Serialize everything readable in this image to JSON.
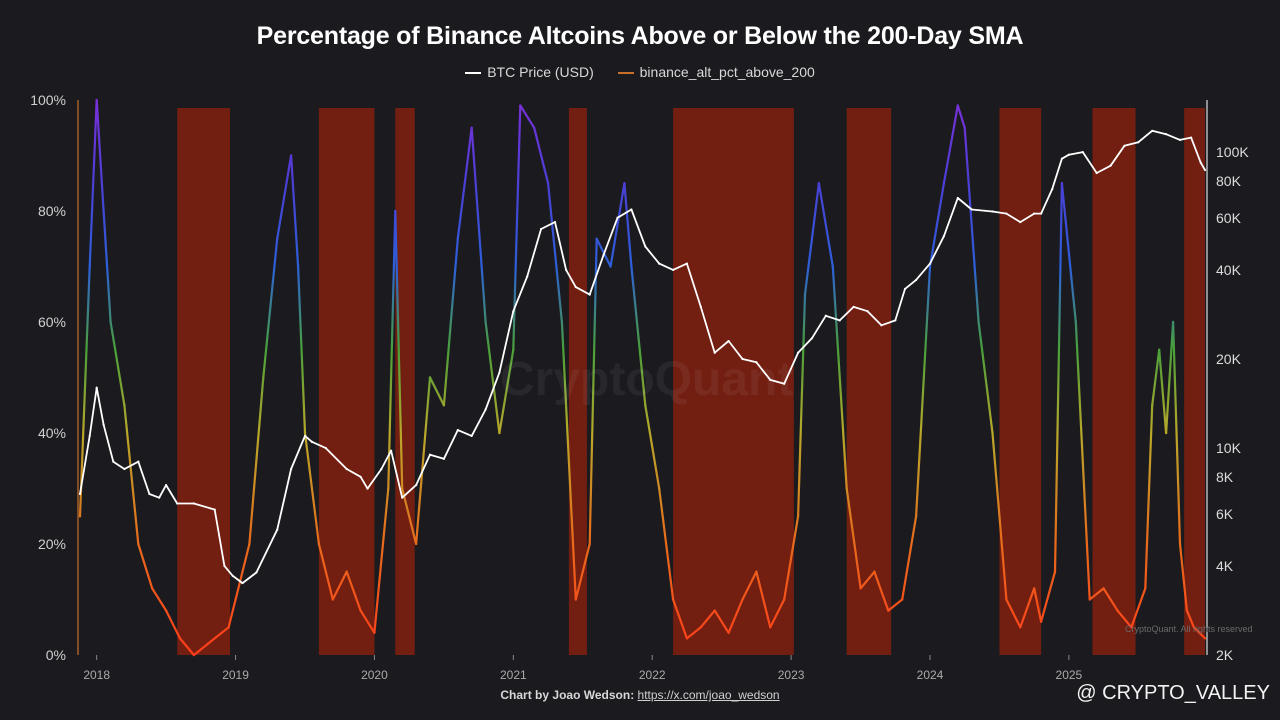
{
  "chart_data": {
    "type": "line",
    "title": "Percentage of Binance Altcoins Above or Below the 200-Day SMA",
    "legend": [
      {
        "name": "BTC Price (USD)",
        "color": "#ffffff"
      },
      {
        "name": "binance_alt_pct_above_200",
        "color": "#c8702a"
      }
    ],
    "x_tick_labels": [
      "2018",
      "2019",
      "2020",
      "2021",
      "2022",
      "2023",
      "2024",
      "2025"
    ],
    "y_left_tick_labels": [
      "100%",
      "80%",
      "60%",
      "40%",
      "20%",
      "0%"
    ],
    "y_left_range": [
      0,
      100
    ],
    "y_right_tick_labels": [
      "100K",
      "80K",
      "60K",
      "40K",
      "20K",
      "10K",
      "8K",
      "6K",
      "4K",
      "2K"
    ],
    "y_right_tick_values": [
      100000,
      80000,
      60000,
      40000,
      20000,
      10000,
      8000,
      6000,
      4000,
      2000
    ],
    "y_right_range": [
      2000,
      150000
    ],
    "y_right_scale": "log",
    "x_range": [
      2017.88,
      2025.98
    ],
    "shaded_bear_periods": [
      [
        2018.58,
        2018.96
      ],
      [
        2019.6,
        2020.0
      ],
      [
        2020.15,
        2020.29
      ],
      [
        2021.4,
        2021.53
      ],
      [
        2022.15,
        2023.02
      ],
      [
        2023.4,
        2023.72
      ],
      [
        2024.5,
        2024.8
      ],
      [
        2025.17,
        2025.48
      ],
      [
        2025.83,
        2025.98
      ]
    ],
    "series": [
      {
        "name": "BTC Price (USD)",
        "x": [
          2017.88,
          2017.95,
          2018.0,
          2018.05,
          2018.12,
          2018.2,
          2018.3,
          2018.38,
          2018.45,
          2018.5,
          2018.58,
          2018.7,
          2018.85,
          2018.92,
          2018.98,
          2019.05,
          2019.15,
          2019.3,
          2019.4,
          2019.5,
          2019.55,
          2019.65,
          2019.8,
          2019.9,
          2019.95,
          2020.05,
          2020.12,
          2020.2,
          2020.3,
          2020.4,
          2020.5,
          2020.6,
          2020.7,
          2020.8,
          2020.9,
          2021.0,
          2021.1,
          2021.2,
          2021.3,
          2021.38,
          2021.45,
          2021.55,
          2021.65,
          2021.75,
          2021.85,
          2021.95,
          2022.05,
          2022.15,
          2022.25,
          2022.35,
          2022.45,
          2022.55,
          2022.65,
          2022.75,
          2022.85,
          2022.95,
          2023.05,
          2023.15,
          2023.25,
          2023.35,
          2023.45,
          2023.55,
          2023.65,
          2023.75,
          2023.82,
          2023.9,
          2024.0,
          2024.1,
          2024.2,
          2024.3,
          2024.45,
          2024.55,
          2024.65,
          2024.75,
          2024.8,
          2024.88,
          2024.95,
          2025.0,
          2025.1,
          2025.2,
          2025.3,
          2025.4,
          2025.5,
          2025.6,
          2025.7,
          2025.8,
          2025.88,
          2025.95,
          2025.98
        ],
        "values": [
          7000,
          11000,
          16000,
          12000,
          9000,
          8500,
          9000,
          7000,
          6800,
          7500,
          6500,
          6500,
          6200,
          4000,
          3700,
          3500,
          3800,
          5300,
          8500,
          11000,
          10500,
          10000,
          8500,
          8000,
          7300,
          8500,
          9800,
          6800,
          7500,
          9500,
          9200,
          11500,
          11000,
          13500,
          18000,
          29000,
          38000,
          55000,
          58000,
          40000,
          35000,
          33000,
          45000,
          60000,
          64000,
          48000,
          42000,
          40000,
          42000,
          30000,
          21000,
          23000,
          20000,
          19500,
          17000,
          16500,
          21000,
          23500,
          28000,
          27000,
          30000,
          29000,
          26000,
          27000,
          34500,
          37000,
          42000,
          52000,
          70000,
          64000,
          63000,
          62000,
          58000,
          62000,
          62000,
          75000,
          95000,
          98000,
          100000,
          85000,
          90000,
          105000,
          108000,
          118000,
          115000,
          110000,
          112000,
          92000,
          87000
        ]
      },
      {
        "name": "binance_alt_pct_above_200",
        "x": [
          2017.88,
          2017.95,
          2018.0,
          2018.05,
          2018.1,
          2018.2,
          2018.3,
          2018.4,
          2018.5,
          2018.6,
          2018.7,
          2018.8,
          2018.9,
          2018.95,
          2019.0,
          2019.1,
          2019.2,
          2019.3,
          2019.4,
          2019.45,
          2019.5,
          2019.6,
          2019.7,
          2019.8,
          2019.9,
          2020.0,
          2020.1,
          2020.15,
          2020.2,
          2020.3,
          2020.4,
          2020.5,
          2020.6,
          2020.7,
          2020.8,
          2020.9,
          2021.0,
          2021.05,
          2021.15,
          2021.25,
          2021.35,
          2021.45,
          2021.55,
          2021.6,
          2021.7,
          2021.8,
          2021.85,
          2021.95,
          2022.05,
          2022.15,
          2022.25,
          2022.35,
          2022.45,
          2022.55,
          2022.65,
          2022.75,
          2022.85,
          2022.95,
          2023.05,
          2023.1,
          2023.2,
          2023.3,
          2023.4,
          2023.5,
          2023.6,
          2023.7,
          2023.8,
          2023.9,
          2024.0,
          2024.1,
          2024.2,
          2024.25,
          2024.35,
          2024.45,
          2024.55,
          2024.65,
          2024.75,
          2024.8,
          2024.9,
          2024.95,
          2025.05,
          2025.15,
          2025.25,
          2025.35,
          2025.45,
          2025.55,
          2025.6,
          2025.65,
          2025.7,
          2025.75,
          2025.8,
          2025.85,
          2025.9,
          2025.98
        ],
        "values": [
          25,
          70,
          100,
          80,
          60,
          45,
          20,
          12,
          8,
          3,
          0,
          2,
          4,
          5,
          10,
          20,
          50,
          75,
          90,
          70,
          40,
          20,
          10,
          15,
          8,
          4,
          30,
          80,
          30,
          20,
          50,
          45,
          75,
          95,
          60,
          40,
          55,
          99,
          95,
          85,
          60,
          10,
          20,
          75,
          70,
          85,
          70,
          45,
          30,
          10,
          3,
          5,
          8,
          4,
          10,
          15,
          5,
          10,
          25,
          65,
          85,
          70,
          30,
          12,
          15,
          8,
          10,
          25,
          70,
          85,
          99,
          95,
          60,
          40,
          10,
          5,
          12,
          6,
          15,
          85,
          60,
          10,
          12,
          8,
          5,
          12,
          45,
          55,
          40,
          60,
          20,
          8,
          5,
          3
        ]
      }
    ]
  },
  "watermark_text": "CryptoQuant",
  "credit": {
    "prefix": "Chart by Joao Wedson:",
    "link": "https://x.com/joao_wedson"
  },
  "brand": "@ CRYPTO_VALLEY",
  "attribution_small": "CryptoQuant. All rights reserved"
}
